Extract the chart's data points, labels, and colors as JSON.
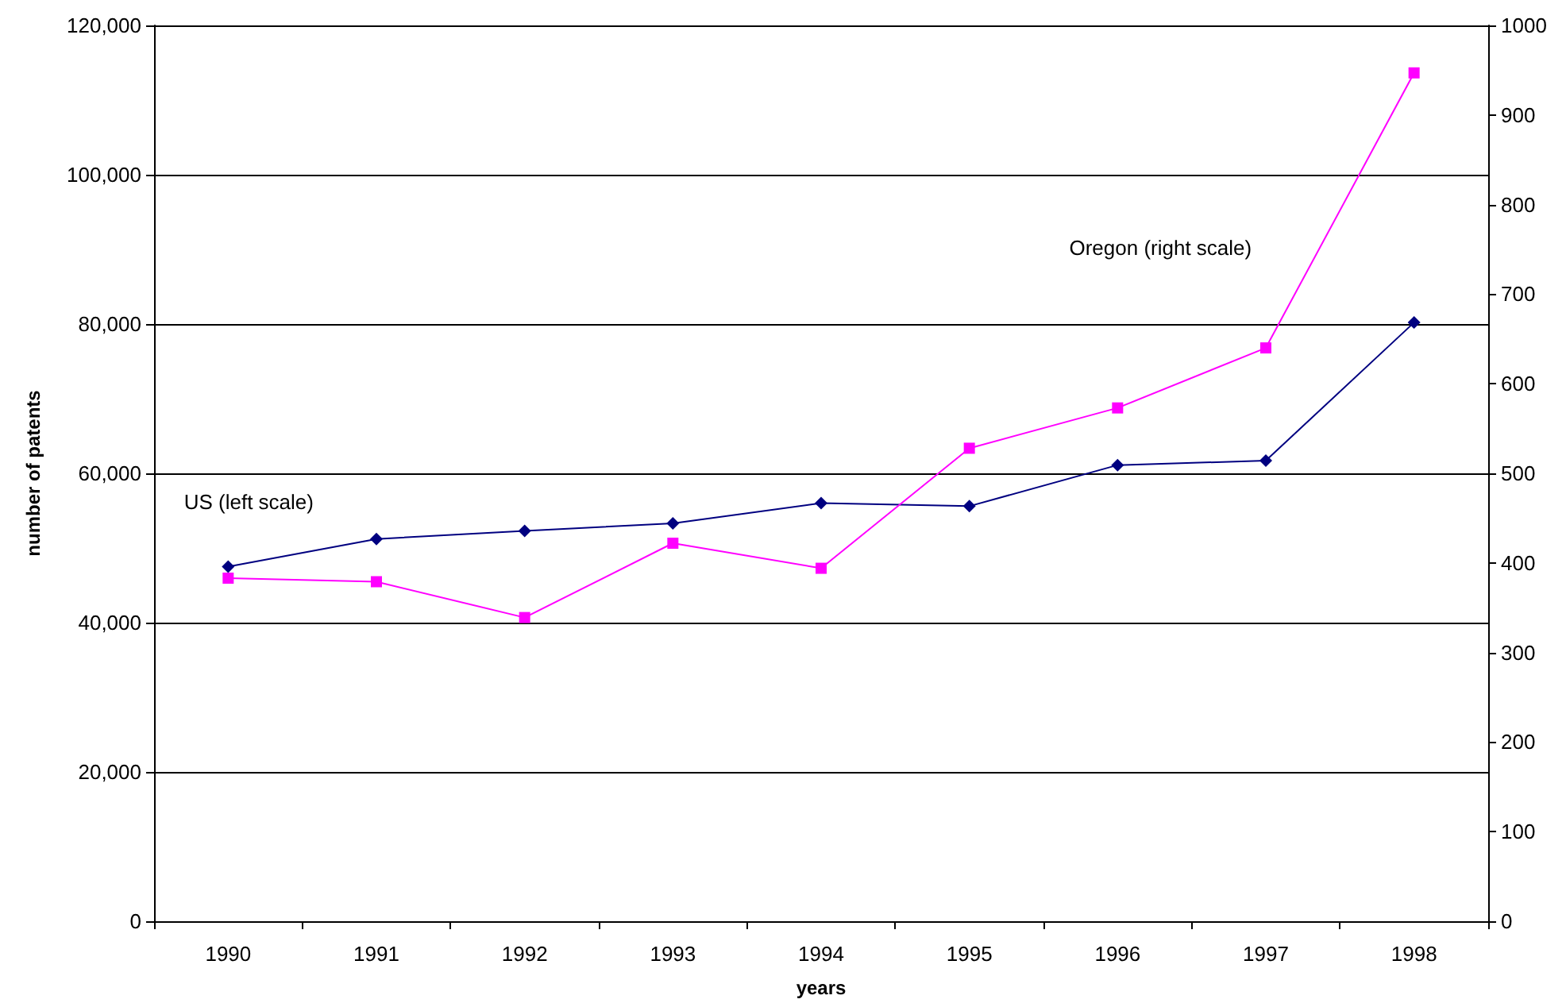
{
  "chart_data": {
    "type": "line",
    "xlabel": "years",
    "ylabel": "number of patents",
    "categories": [
      "1990",
      "1991",
      "1992",
      "1993",
      "1994",
      "1995",
      "1996",
      "1997",
      "1998"
    ],
    "series": [
      {
        "name": "US (left scale)",
        "color": "#000080",
        "marker": "diamond",
        "values": [
          47500,
          51200,
          52300,
          53300,
          56000,
          55600,
          61100,
          61700,
          80200
        ]
      },
      {
        "name": "Oregon (right scale)",
        "color": "#ff00ff",
        "marker": "square",
        "axis": "y2",
        "values": [
          383,
          379,
          339,
          422,
          394,
          528,
          573,
          640,
          947
        ]
      }
    ],
    "ylim": [
      0,
      120000
    ],
    "yticks": [
      {
        "value": 0,
        "label": "0"
      },
      {
        "value": 20000,
        "label": "20,000"
      },
      {
        "value": 40000,
        "label": "40,000"
      },
      {
        "value": 60000,
        "label": "60,000"
      },
      {
        "value": 80000,
        "label": "80,000"
      },
      {
        "value": 100000,
        "label": "100,000"
      },
      {
        "value": 120000,
        "label": "120,000"
      }
    ],
    "y2lim": [
      0,
      1000
    ],
    "y2ticks": [
      0,
      100,
      200,
      300,
      400,
      500,
      600,
      700,
      800,
      900,
      1000
    ],
    "grid": "y"
  }
}
